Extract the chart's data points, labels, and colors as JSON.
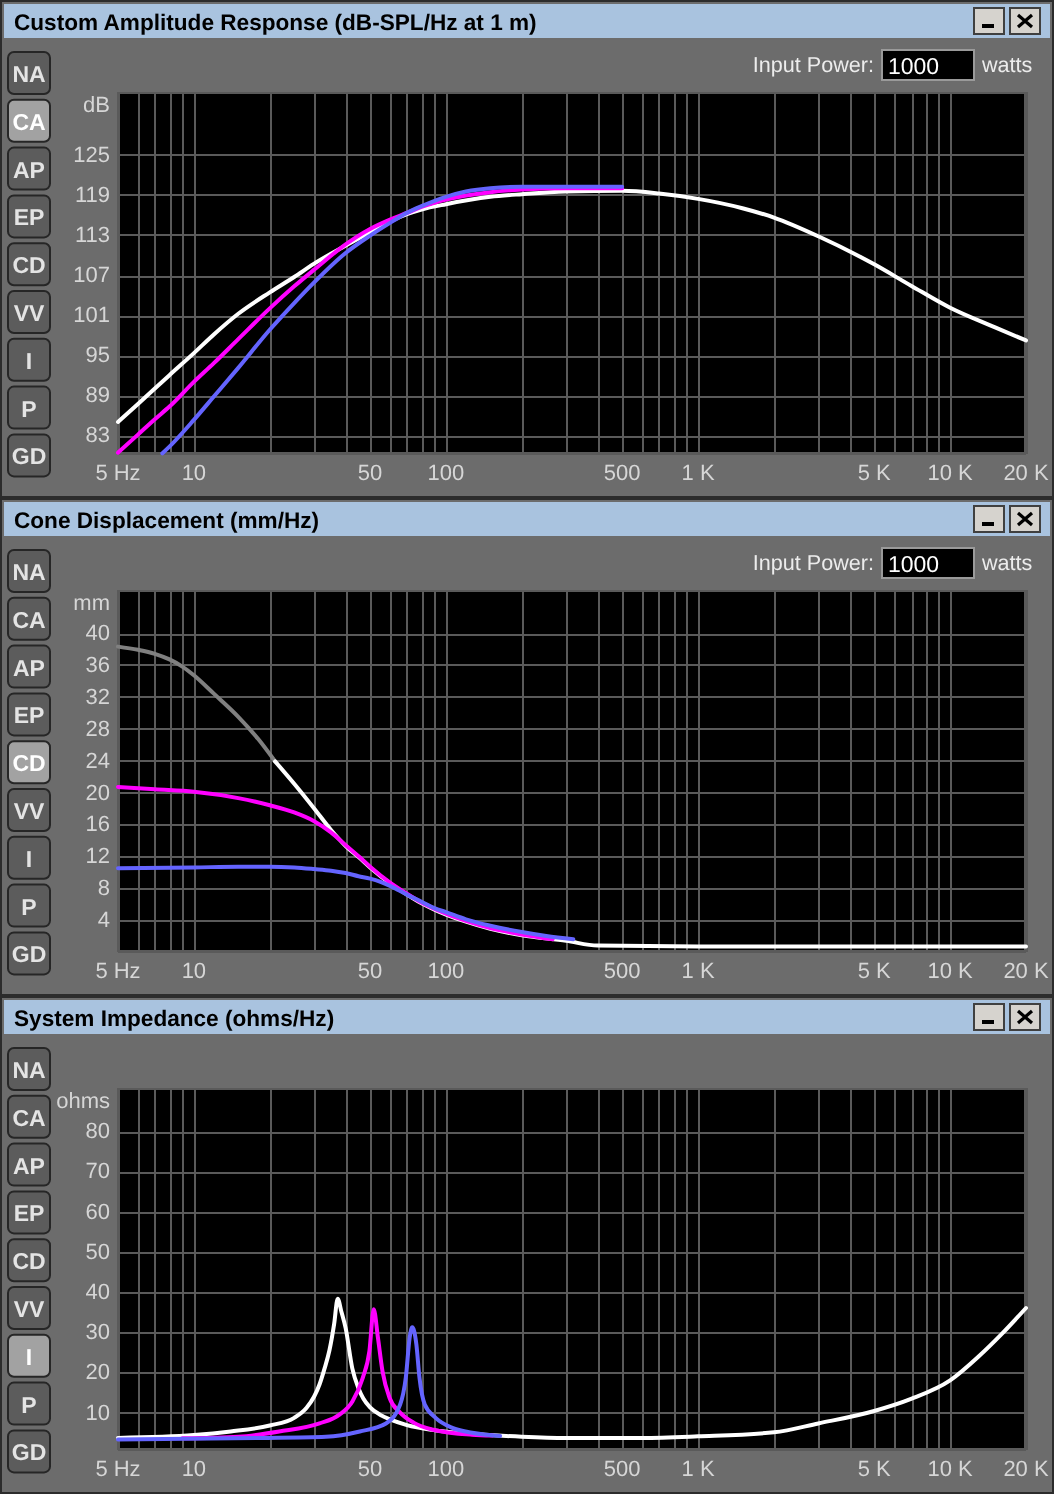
{
  "chart_data": [
    {
      "type": "line",
      "title": "Custom Amplitude Response (dB-SPL/Hz at 1 m)",
      "ylabel": "dB",
      "annotations": [
        "NA",
        "CA",
        "AP",
        "EP",
        "CD",
        "VV",
        "I",
        "P",
        "GD",
        "Input Power:",
        "1000",
        "watts"
      ],
      "log": "x",
      "grid": true,
      "xlim": [
        5,
        20000
      ],
      "ylim": [
        80.2,
        134.4
      ],
      "xticks": [
        {
          "value": 5,
          "label": "5 Hz"
        },
        {
          "value": 6,
          "label": null
        },
        {
          "value": 7,
          "label": null
        },
        {
          "value": 8,
          "label": null
        },
        {
          "value": 9,
          "label": null
        },
        10,
        {
          "value": 20,
          "label": null
        },
        {
          "value": 30,
          "label": null
        },
        {
          "value": 40,
          "label": null
        },
        50,
        {
          "value": 60,
          "label": null
        },
        {
          "value": 70,
          "label": null
        },
        {
          "value": 80,
          "label": null
        },
        {
          "value": 90,
          "label": null
        },
        100,
        {
          "value": 200,
          "label": null
        },
        {
          "value": 300,
          "label": null
        },
        {
          "value": 400,
          "label": null
        },
        500,
        {
          "value": 600,
          "label": null
        },
        {
          "value": 700,
          "label": null
        },
        {
          "value": 800,
          "label": null
        },
        {
          "value": 900,
          "label": null
        },
        {
          "value": 1000,
          "label": "1 K"
        },
        {
          "value": 2000,
          "label": null
        },
        {
          "value": 3000,
          "label": null
        },
        {
          "value": 4000,
          "label": null
        },
        {
          "value": 5000,
          "label": "5 K"
        },
        {
          "value": 6000,
          "label": null
        },
        {
          "value": 7000,
          "label": null
        },
        {
          "value": 8000,
          "label": null
        },
        {
          "value": 9000,
          "label": null
        },
        {
          "value": 10000,
          "label": "10 K"
        },
        {
          "value": 20000,
          "label": "20 K"
        }
      ],
      "yticks": [
        83,
        89,
        95,
        101,
        107,
        113,
        119,
        125
      ],
      "series": [
        {
          "color": "#ffffff",
          "x": [
            5,
            6,
            7,
            8,
            10,
            12,
            15,
            20,
            25,
            30,
            40,
            50,
            60,
            70,
            80,
            100,
            150,
            200,
            300,
            500,
            700,
            1000,
            1500,
            2000,
            3000,
            5000,
            7000,
            10000,
            15000,
            20000
          ],
          "values": [
            85,
            87.7,
            90,
            92,
            95.3,
            98.1,
            101.2,
            104.4,
            106.7,
            108.7,
            111.4,
            113.4,
            115,
            116.1,
            116.8,
            117.6,
            118.7,
            119.1,
            119.5,
            119.6,
            119.2,
            118.4,
            117,
            115.6,
            112.8,
            108.6,
            105.4,
            102.1,
            99.2,
            97.2
          ]
        },
        {
          "color": "#ff00ff",
          "x": [
            5,
            6,
            7,
            8,
            10,
            12,
            15,
            20,
            25,
            30,
            40,
            50,
            60,
            70,
            80,
            100,
            150,
            200,
            300,
            500
          ],
          "values": [
            80.4,
            83.1,
            85.4,
            87.3,
            91,
            93.8,
            97.4,
            102,
            105.3,
            107.8,
            111.6,
            113.9,
            115.3,
            116.3,
            117.2,
            118.3,
            119.4,
            119.8,
            120,
            120
          ]
        },
        {
          "color": "#6464ff",
          "x": [
            7.5,
            8,
            10,
            12,
            15,
            20,
            25,
            30,
            40,
            50,
            60,
            70,
            80,
            100,
            120,
            150,
            200,
            300,
            500
          ],
          "values": [
            80.3,
            81.3,
            85.3,
            88.8,
            93.1,
            98.8,
            102.8,
            105.9,
            110.3,
            112.9,
            114.8,
            116.3,
            117.3,
            118.7,
            119.5,
            120,
            120.2,
            120.2,
            120.2
          ]
        }
      ]
    },
    {
      "type": "line",
      "title": "Cone Displacement (mm/Hz)",
      "ylabel": "mm",
      "annotations": [
        "NA",
        "CA",
        "AP",
        "EP",
        "CD",
        "VV",
        "I",
        "P",
        "GD",
        "Input Power:",
        "1000",
        "watts"
      ],
      "log": "x",
      "grid": true,
      "xlim": [
        5,
        20000
      ],
      "ylim": [
        0,
        45.4
      ],
      "xticks": [
        {
          "value": 5,
          "label": "5 Hz"
        },
        {
          "value": 6,
          "label": null
        },
        {
          "value": 7,
          "label": null
        },
        {
          "value": 8,
          "label": null
        },
        {
          "value": 9,
          "label": null
        },
        10,
        {
          "value": 20,
          "label": null
        },
        {
          "value": 30,
          "label": null
        },
        {
          "value": 40,
          "label": null
        },
        50,
        {
          "value": 60,
          "label": null
        },
        {
          "value": 70,
          "label": null
        },
        {
          "value": 80,
          "label": null
        },
        {
          "value": 90,
          "label": null
        },
        100,
        {
          "value": 200,
          "label": null
        },
        {
          "value": 300,
          "label": null
        },
        {
          "value": 400,
          "label": null
        },
        500,
        {
          "value": 600,
          "label": null
        },
        {
          "value": 700,
          "label": null
        },
        {
          "value": 800,
          "label": null
        },
        {
          "value": 900,
          "label": null
        },
        {
          "value": 1000,
          "label": "1 K"
        },
        {
          "value": 2000,
          "label": null
        },
        {
          "value": 3000,
          "label": null
        },
        {
          "value": 4000,
          "label": null
        },
        {
          "value": 5000,
          "label": "5 K"
        },
        {
          "value": 6000,
          "label": null
        },
        {
          "value": 7000,
          "label": null
        },
        {
          "value": 8000,
          "label": null
        },
        {
          "value": 9000,
          "label": null
        },
        {
          "value": 10000,
          "label": "10 K"
        },
        {
          "value": 20000,
          "label": "20 K"
        }
      ],
      "yticks": [
        4,
        8,
        12,
        16,
        20,
        24,
        28,
        32,
        36,
        40
      ],
      "series": [
        {
          "color": "#808080",
          "x": [
            5,
            6,
            7,
            8,
            9,
            10,
            12,
            15,
            18,
            21
          ],
          "values": [
            38.3,
            37.9,
            37.4,
            36.7,
            35.8,
            34.7,
            32.4,
            29.5,
            26.7,
            23.9
          ]
        },
        {
          "color": "#ffffff",
          "x": [
            21,
            25,
            30,
            35,
            40,
            45,
            50,
            60,
            70,
            80,
            90,
            100,
            120,
            150,
            200,
            300,
            400,
            1000,
            5000,
            20000
          ],
          "values": [
            23.9,
            21.1,
            18,
            15.3,
            13.3,
            11.9,
            10.6,
            8.6,
            7.2,
            6.1,
            5.3,
            4.7,
            3.8,
            2.9,
            2.1,
            1.4,
            0.8,
            0.7,
            0.7,
            0.7
          ]
        },
        {
          "color": "#ff00ff",
          "x": [
            5,
            7,
            10,
            15,
            20,
            25,
            30,
            35,
            40,
            45,
            50,
            60,
            70,
            80,
            100,
            120,
            150,
            200,
            265
          ],
          "values": [
            20.7,
            20.4,
            20.1,
            19.3,
            18.4,
            17.5,
            16.4,
            15,
            13.4,
            12,
            10.7,
            8.7,
            7.3,
            6.2,
            4.8,
            3.9,
            3,
            2.2,
            1.6
          ]
        },
        {
          "color": "#6464ff",
          "x": [
            5,
            10,
            15,
            20,
            25,
            30,
            35,
            40,
            45,
            50,
            55,
            60,
            70,
            80,
            90,
            100,
            120,
            150,
            200,
            250,
            320
          ],
          "values": [
            10.5,
            10.6,
            10.7,
            10.7,
            10.6,
            10.4,
            10.2,
            9.9,
            9.5,
            9.2,
            8.8,
            8.3,
            7.2,
            6.3,
            5.5,
            5,
            4.1,
            3.3,
            2.5,
            2,
            1.6
          ]
        }
      ]
    },
    {
      "type": "line",
      "title": "System Impedance (ohms/Hz)",
      "ylabel": "ohms",
      "annotations": [
        "NA",
        "CA",
        "AP",
        "EP",
        "CD",
        "VV",
        "I",
        "P",
        "GD"
      ],
      "log": "x",
      "grid": true,
      "xlim": [
        5,
        20000
      ],
      "ylim": [
        0.7,
        90.7
      ],
      "xticks": [
        {
          "value": 5,
          "label": "5 Hz"
        },
        {
          "value": 6,
          "label": null
        },
        {
          "value": 7,
          "label": null
        },
        {
          "value": 8,
          "label": null
        },
        {
          "value": 9,
          "label": null
        },
        10,
        {
          "value": 20,
          "label": null
        },
        {
          "value": 30,
          "label": null
        },
        {
          "value": 40,
          "label": null
        },
        50,
        {
          "value": 60,
          "label": null
        },
        {
          "value": 70,
          "label": null
        },
        {
          "value": 80,
          "label": null
        },
        {
          "value": 90,
          "label": null
        },
        100,
        {
          "value": 200,
          "label": null
        },
        {
          "value": 300,
          "label": null
        },
        {
          "value": 400,
          "label": null
        },
        500,
        {
          "value": 600,
          "label": null
        },
        {
          "value": 700,
          "label": null
        },
        {
          "value": 800,
          "label": null
        },
        {
          "value": 900,
          "label": null
        },
        {
          "value": 1000,
          "label": "1 K"
        },
        {
          "value": 2000,
          "label": null
        },
        {
          "value": 3000,
          "label": null
        },
        {
          "value": 4000,
          "label": null
        },
        {
          "value": 5000,
          "label": "5 K"
        },
        {
          "value": 6000,
          "label": null
        },
        {
          "value": 7000,
          "label": null
        },
        {
          "value": 8000,
          "label": null
        },
        {
          "value": 9000,
          "label": null
        },
        {
          "value": 10000,
          "label": "10 K"
        },
        {
          "value": 20000,
          "label": "20 K"
        }
      ],
      "yticks": [
        10,
        20,
        30,
        40,
        50,
        60,
        70,
        80
      ],
      "series": [
        {
          "color": "#ffffff",
          "x": [
            5,
            10,
            14,
            20,
            25,
            28,
            30,
            31.5,
            33,
            34.5,
            36,
            37.2,
            38.5,
            40,
            42.5,
            45,
            47,
            50,
            55,
            60,
            70,
            88,
            110,
            143,
            200,
            300,
            600,
            1000,
            2000,
            3000,
            5000,
            7000,
            10000,
            13000,
            16000,
            20000
          ],
          "values": [
            3.7,
            4.4,
            5.3,
            6.8,
            8.7,
            11.2,
            14,
            17,
            21,
            25.5,
            32,
            38.3,
            35,
            31,
            21,
            16,
            13.5,
            11.3,
            9.4,
            8.3,
            6.9,
            5.7,
            5,
            4.5,
            4,
            3.7,
            3.7,
            4.1,
            5.1,
            7.3,
            10.4,
            13.4,
            18,
            24,
            29.5,
            36
          ]
        },
        {
          "color": "#ff00ff",
          "x": [
            9,
            15,
            21.8,
            31.5,
            37.8,
            42.6,
            46.8,
            49.7,
            51.7,
            53.7,
            56,
            59.7,
            65.8,
            74.4,
            88,
            127,
            153
          ],
          "values": [
            3.6,
            4,
            5.3,
            7.3,
            9.5,
            12.8,
            18.7,
            25.3,
            35.7,
            28.7,
            20.3,
            13.7,
            10,
            7.5,
            5.8,
            4.5,
            4.3
          ]
        },
        {
          "color": "#6464ff",
          "x": [
            5,
            18.1,
            33.4,
            45.5,
            57.8,
            65.8,
            69.3,
            71.8,
            73.5,
            76.3,
            78.5,
            82.4,
            91,
            106,
            127,
            164
          ],
          "values": [
            3.3,
            3.7,
            4,
            5.3,
            7.3,
            12,
            18.7,
            28.7,
            31.2,
            27,
            18.7,
            12,
            8.7,
            6.2,
            5,
            4.2
          ]
        }
      ]
    }
  ]
}
